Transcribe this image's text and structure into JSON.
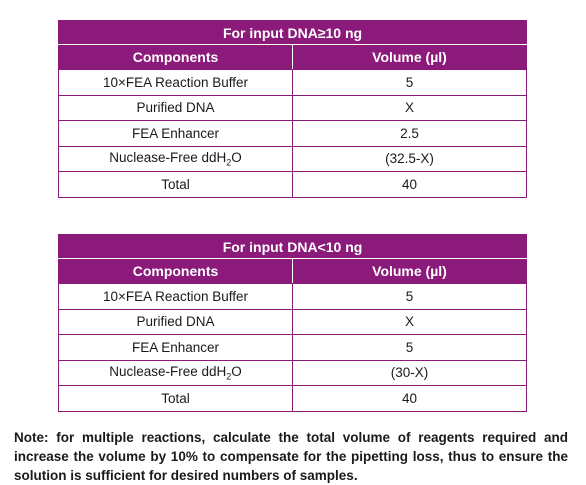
{
  "colors": {
    "header_bg": "#8b1a7b",
    "header_text": "#ffffff",
    "border": "#8a1a78"
  },
  "tables": [
    {
      "title": "For input DNA≥10 ng",
      "headers": [
        "Components",
        "Volume (µl)"
      ],
      "rows": [
        {
          "component": "10×FEA Reaction Buffer",
          "volume": "5"
        },
        {
          "component": "Purified DNA",
          "volume": "X"
        },
        {
          "component": "FEA Enhancer",
          "volume": "2.5"
        },
        {
          "component_prefix": "Nuclease-Free ddH",
          "component_sub": "2",
          "component_suffix": "O",
          "volume": "(32.5-X)"
        },
        {
          "component": "Total",
          "volume": "40"
        }
      ]
    },
    {
      "title": "For input DNA<10 ng",
      "headers": [
        "Components",
        "Volume (µl)"
      ],
      "rows": [
        {
          "component": "10×FEA Reaction Buffer",
          "volume": "5"
        },
        {
          "component": "Purified DNA",
          "volume": "X"
        },
        {
          "component": "FEA Enhancer",
          "volume": "5"
        },
        {
          "component_prefix": "Nuclease-Free ddH",
          "component_sub": "2",
          "component_suffix": "O",
          "volume": "(30-X)"
        },
        {
          "component": "Total",
          "volume": "40"
        }
      ]
    }
  ],
  "note": "Note: for multiple reactions, calculate the total volume of reagents required and increase the volume by 10% to compensate for the pipetting loss, thus to ensure the solution is sufficient for desired numbers of samples."
}
